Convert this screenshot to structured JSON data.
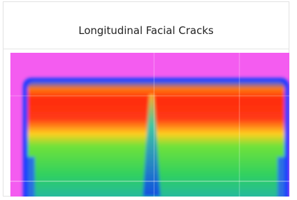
{
  "card": {
    "title": "Longitudinal Facial Cracks"
  }
}
